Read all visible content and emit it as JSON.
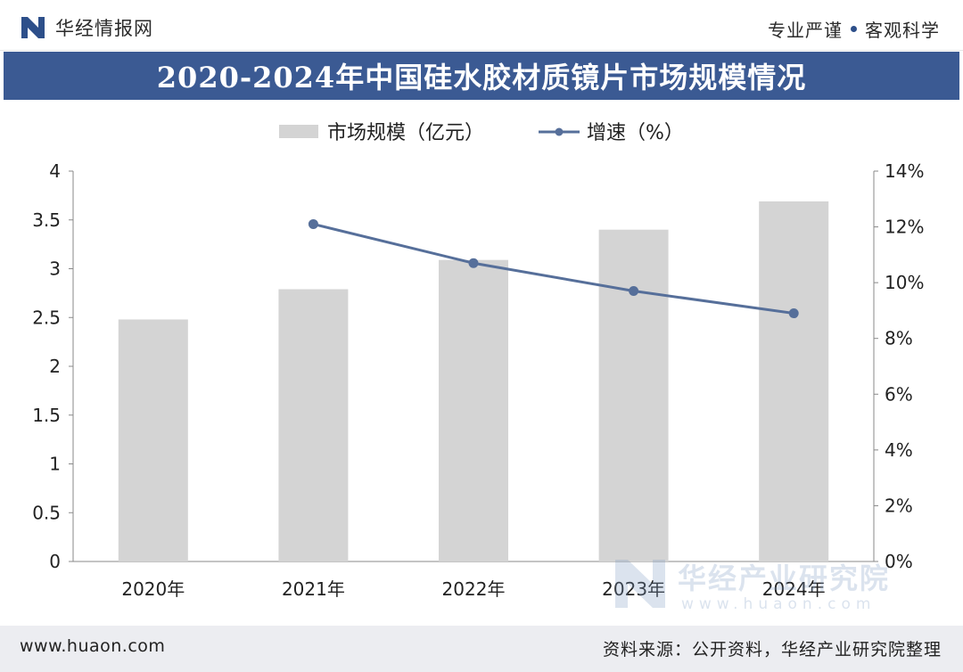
{
  "header": {
    "brand_name": "华经情报网",
    "slogan_left": "专业严谨",
    "slogan_right": "客观科学"
  },
  "title": "2020-2024年中国硅水胶材质镜片市场规模情况",
  "legend": {
    "bar_label": "市场规模（亿元）",
    "line_label": "增速（%）"
  },
  "colors": {
    "bar": "#d4d4d4",
    "line": "#566f9a",
    "title_band": "#3b5a93"
  },
  "chart_data": {
    "type": "bar+line",
    "title": "2020-2024年中国硅水胶材质镜片市场规模情况",
    "categories": [
      "2020年",
      "2021年",
      "2022年",
      "2023年",
      "2024年"
    ],
    "series": [
      {
        "name": "市场规模（亿元）",
        "type": "bar",
        "axis": "left",
        "values": [
          2.48,
          2.79,
          3.09,
          3.4,
          3.69
        ]
      },
      {
        "name": "增速（%）",
        "type": "line",
        "axis": "right",
        "values": [
          null,
          12.1,
          10.7,
          9.7,
          8.9
        ]
      }
    ],
    "left_axis": {
      "min": 0,
      "max": 4,
      "ticks": [
        "0",
        "0.5",
        "1",
        "1.5",
        "2",
        "2.5",
        "3",
        "3.5",
        "4"
      ]
    },
    "right_axis": {
      "min": 0,
      "max": 14,
      "ticks": [
        "0%",
        "2%",
        "4%",
        "6%",
        "8%",
        "10%",
        "12%",
        "14%"
      ]
    },
    "grid": false,
    "legend_position": "top-center"
  },
  "watermark": {
    "name": "华经产业研究院",
    "url": "www.huaon.com"
  },
  "footer": {
    "url": "www.huaon.com",
    "source": "资料来源：公开资料，华经产业研究院整理"
  }
}
